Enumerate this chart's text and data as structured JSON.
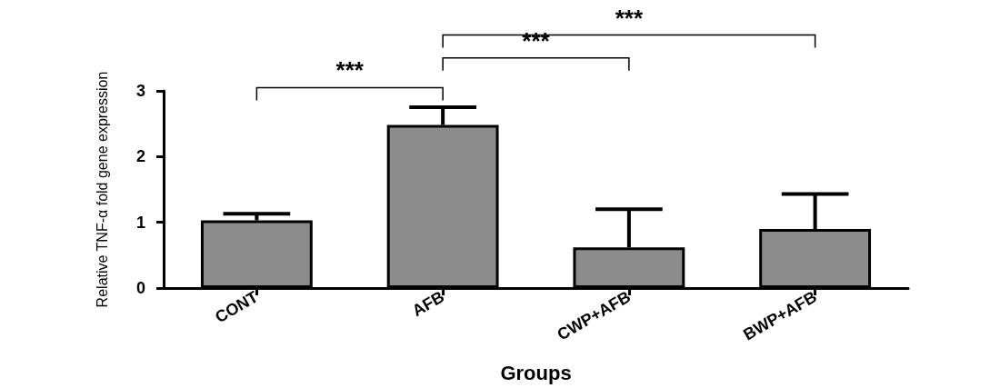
{
  "chart_data": {
    "type": "bar",
    "xlabel": "Groups",
    "ylabel": "Relative TNF-α fold gene expression",
    "categories": [
      "CONT",
      "AFB",
      "CWP+AFB",
      "BWP+AFB"
    ],
    "values": [
      1.03,
      2.48,
      0.62,
      0.9
    ],
    "errors": [
      [
        1.03,
        1.13
      ],
      [
        2.48,
        2.75
      ],
      [
        0.62,
        1.2
      ],
      [
        0.9,
        1.43
      ]
    ],
    "color": "#8c8c8c",
    "ylim": [
      0,
      3
    ],
    "yticks": [
      0,
      1,
      2,
      3
    ],
    "grid": false,
    "annotations": [
      "***",
      "***",
      "***"
    ]
  }
}
